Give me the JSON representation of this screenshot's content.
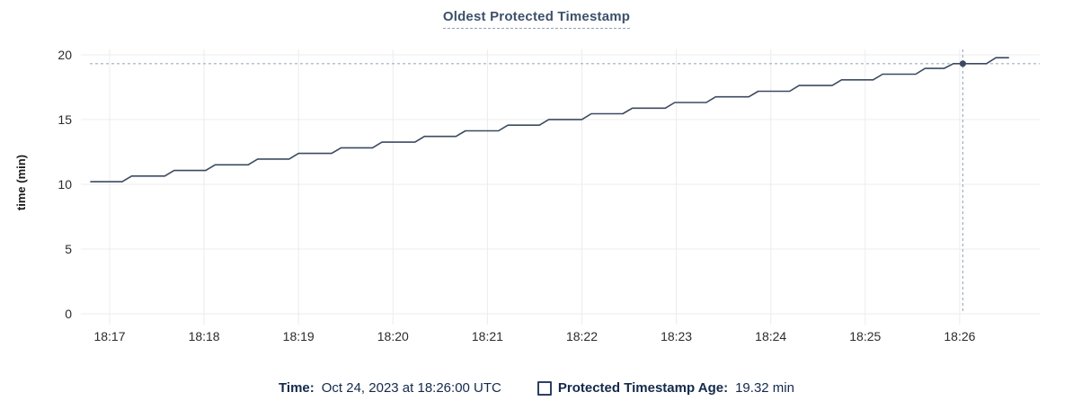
{
  "title": "Oldest Protected Timestamp",
  "chart_data": {
    "type": "line",
    "title": "Oldest Protected Timestamp",
    "xlabel": "",
    "ylabel": "time (min)",
    "ylim": [
      0,
      20
    ],
    "y_ticks": [
      0,
      5,
      10,
      15,
      20
    ],
    "x_ticks": [
      {
        "label": "18:17",
        "t": 60
      },
      {
        "label": "18:18",
        "t": 120
      },
      {
        "label": "18:19",
        "t": 180
      },
      {
        "label": "18:20",
        "t": 240
      },
      {
        "label": "18:21",
        "t": 300
      },
      {
        "label": "18:22",
        "t": 360
      },
      {
        "label": "18:23",
        "t": 420
      },
      {
        "label": "18:24",
        "t": 480
      },
      {
        "label": "18:25",
        "t": 540
      },
      {
        "label": "18:26",
        "t": 600
      }
    ],
    "grid": true,
    "legend_position": "bottom",
    "series": [
      {
        "name": "Protected Timestamp Age",
        "unit": "min",
        "points": [
          [
            48,
            10.2
          ],
          [
            68,
            10.2
          ],
          [
            74,
            10.64
          ],
          [
            95,
            10.64
          ],
          [
            101,
            11.07
          ],
          [
            121,
            11.07
          ],
          [
            127,
            11.51
          ],
          [
            148,
            11.51
          ],
          [
            154,
            11.95
          ],
          [
            174,
            11.95
          ],
          [
            180,
            12.39
          ],
          [
            201,
            12.39
          ],
          [
            207,
            12.82
          ],
          [
            227,
            12.82
          ],
          [
            233,
            13.26
          ],
          [
            254,
            13.26
          ],
          [
            260,
            13.7
          ],
          [
            280,
            13.7
          ],
          [
            286,
            14.13
          ],
          [
            307,
            14.13
          ],
          [
            313,
            14.57
          ],
          [
            333,
            14.57
          ],
          [
            339,
            15.01
          ],
          [
            360,
            15.01
          ],
          [
            366,
            15.45
          ],
          [
            386,
            15.45
          ],
          [
            392,
            15.88
          ],
          [
            413,
            15.88
          ],
          [
            419,
            16.32
          ],
          [
            439,
            16.32
          ],
          [
            445,
            16.76
          ],
          [
            466,
            16.76
          ],
          [
            472,
            17.19
          ],
          [
            492,
            17.19
          ],
          [
            498,
            17.63
          ],
          [
            519,
            17.63
          ],
          [
            525,
            18.07
          ],
          [
            545,
            18.07
          ],
          [
            551,
            18.51
          ],
          [
            572,
            18.51
          ],
          [
            578,
            18.95
          ],
          [
            590,
            18.95
          ],
          [
            596,
            19.32
          ],
          [
            617,
            19.32
          ],
          [
            623,
            19.78
          ],
          [
            631,
            19.78
          ]
        ]
      }
    ],
    "crosshair": {
      "t": 602,
      "value": 19.32
    }
  },
  "tooltip": {
    "time_label": "Time:",
    "time_value": "Oct 24, 2023 at 18:26:00 UTC",
    "series_label": "Protected Timestamp Age:",
    "series_value": "19.32 min"
  },
  "colors": {
    "line": "#3b4a62",
    "grid": "#ececec",
    "crosshair": "#9ab0bf",
    "tick_label": "#2b2b2b",
    "axis_title": "#1a1a1a",
    "title": "#3c516b",
    "title_underline": "#8fa0b8",
    "legend_text": "#13294b",
    "checkbox_border": "#2c4160",
    "background": "#ffffff"
  }
}
